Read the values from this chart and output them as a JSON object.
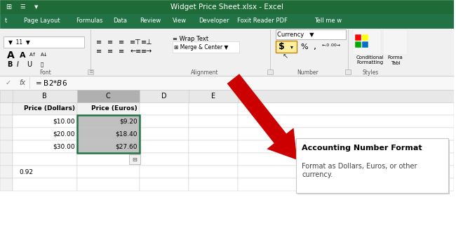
{
  "title_bar_text": "Widget Price Sheet.xlsx - Excel",
  "title_bar_color": "#1e6b38",
  "ribbon_green": "#217346",
  "ribbon_light_bg": "#f0f0f0",
  "ribbon_tabs": [
    "Page Layout",
    "Formulas",
    "Data",
    "Review",
    "View",
    "Developer",
    "Foxit Reader PDF",
    "Tell me w"
  ],
  "tab_x": [
    60,
    128,
    172,
    215,
    257,
    306,
    375,
    470
  ],
  "formula_bar_text": "= B2*$B$6",
  "currency_dropdown_text": "Currency",
  "tooltip_title": "Accounting Number Format",
  "tooltip_body": "Format as Dollars, Euros, or other\ncurrency.",
  "wrap_text_label": "Wrap Text",
  "merge_center_label": "Merge & Center",
  "conditional_format_label": "Conditional\nFormatting",
  "number_label": "Number",
  "font_label": "Font",
  "alignment_label": "Alignment",
  "styles_label": "Styles",
  "col_b_header": "B",
  "col_c_header": "C",
  "col_d_header": "D",
  "col_e_header": "E",
  "row1_b": "Price (Dollars)",
  "row1_c": "Price (Euros)",
  "row2_b": "$10.00",
  "row2_c": "$9.20",
  "row3_b": "$20.00",
  "row3_c": "$18.40",
  "row4_b": "$30.00",
  "row4_c": "$27.60",
  "bottom_val": "0.92",
  "arrow_color": "#cc0000",
  "grid_color": "#c8c8c8",
  "selected_col_c_bg": "#c0c0c0",
  "col_c_border": "#217346",
  "tooltip_bg": "#ffffff",
  "tooltip_border": "#c8c8c8",
  "spreadsheet_bg": "#ffffff",
  "row_num_bg": "#f2f2f2",
  "col_header_bg": "#e8e8e8",
  "col_c_header_bg": "#b0b0b0"
}
